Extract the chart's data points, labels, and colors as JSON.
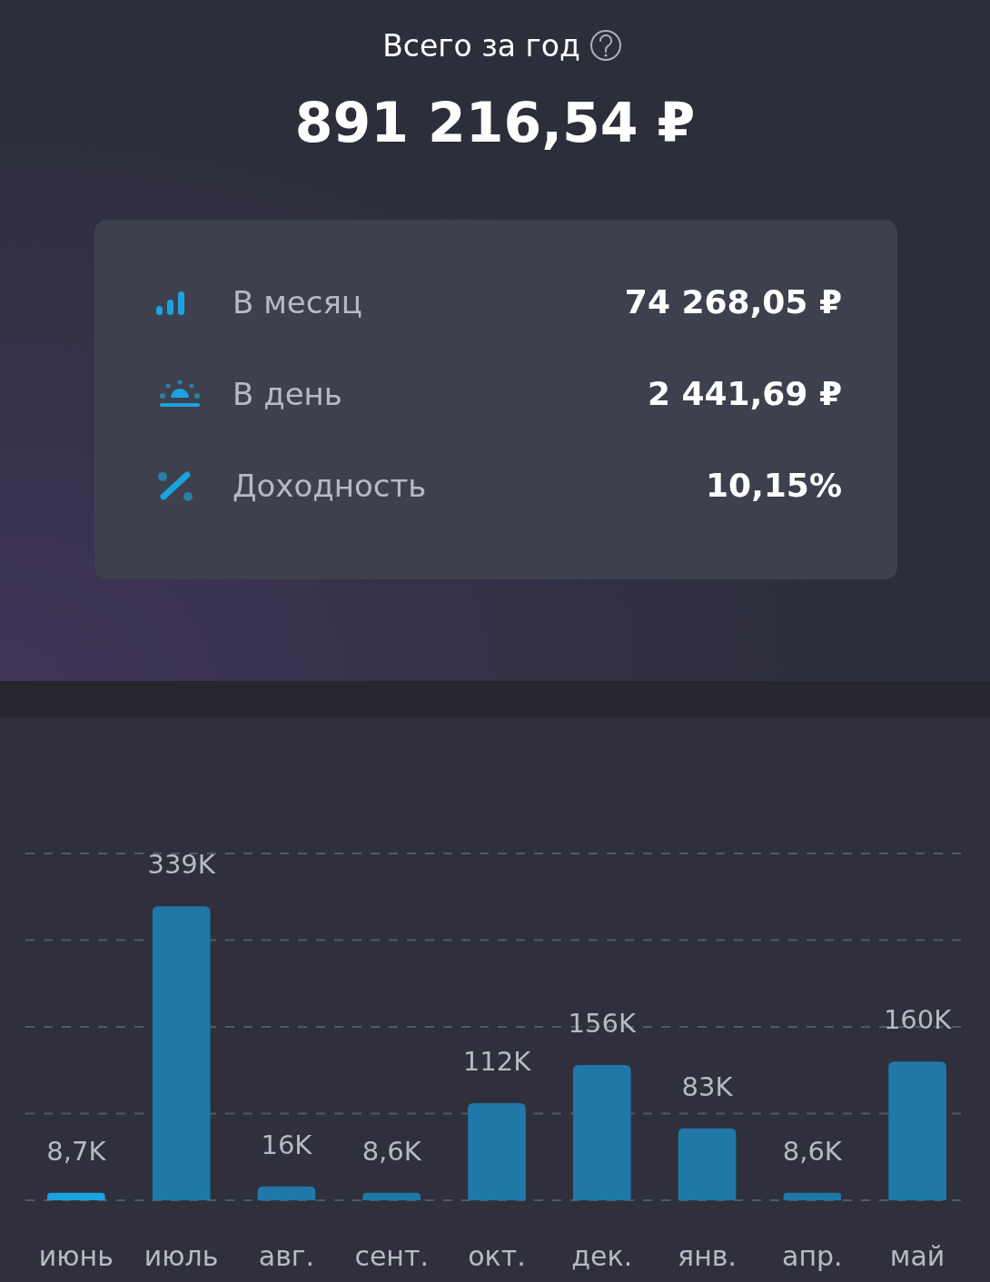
{
  "chart_data": [
    {
      "type": "other",
      "title": "Всего за год",
      "subtitle": "891 216,54 ₽",
      "annotations": [
        "В месяц",
        "74 268,05 ₽",
        "В день",
        "2 441,69 ₽",
        "Доходность",
        "10,15%"
      ]
    },
    {
      "type": "bar",
      "categories": [
        "июнь",
        "июль",
        "авг.",
        "сент.",
        "окт.",
        "дек.",
        "янв.",
        "апр.",
        "май"
      ],
      "values": [
        8.7,
        339,
        16,
        8.6,
        112,
        156,
        83,
        8.6,
        160
      ],
      "value_labels": [
        "8,7K",
        "339K",
        "16K",
        "8,6K",
        "112K",
        "156K",
        "83K",
        "8,6K",
        "160K"
      ],
      "colors": [
        "#1aa3e0",
        "#1f78a8",
        "#1f78a8",
        "#1f78a8",
        "#1f78a8",
        "#1f78a8",
        "#1f78a8",
        "#1f78a8",
        "#1f78a8"
      ],
      "ylim": [
        0,
        400
      ],
      "yticks": [
        {
          "value": 0,
          "label": null
        },
        {
          "value": 100,
          "label": null
        },
        {
          "value": 200,
          "label": null
        },
        {
          "value": 300,
          "label": null
        },
        {
          "value": 400,
          "label": null
        }
      ],
      "grid": "y",
      "tick_labels": "x"
    }
  ]
}
